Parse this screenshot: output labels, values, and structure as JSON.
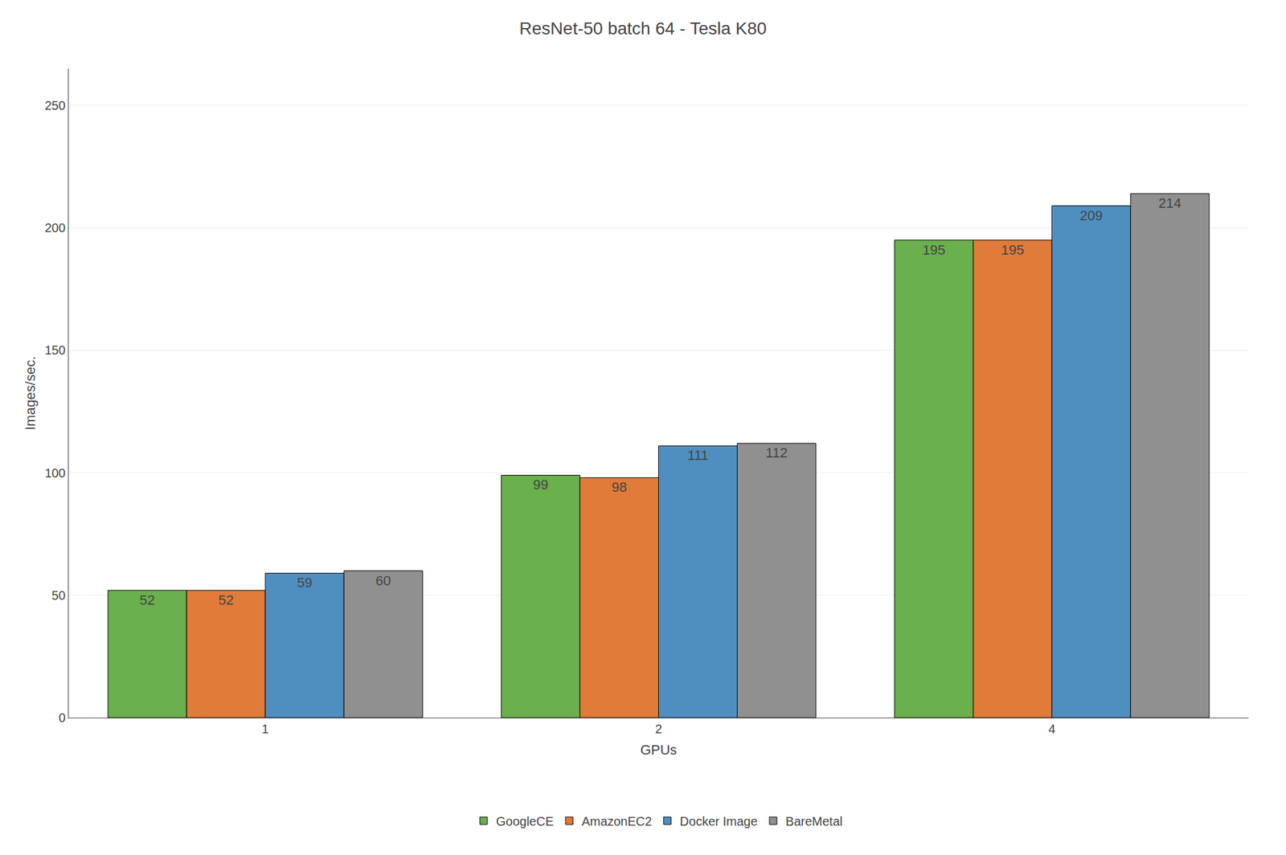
{
  "chart_data": {
    "type": "bar",
    "title": "ResNet-50 batch 64 - Tesla K80",
    "xlabel": "GPUs",
    "ylabel": "Images/sec.",
    "categories": [
      1,
      2,
      4
    ],
    "series": [
      {
        "name": "GoogleCE",
        "color": "#6ab04c",
        "values": [
          52,
          99,
          195
        ]
      },
      {
        "name": "AmazonEC2",
        "color": "#e07b39",
        "values": [
          52,
          98,
          195
        ]
      },
      {
        "name": "Docker Image",
        "color": "#4f8fc0",
        "values": [
          59,
          111,
          209
        ]
      },
      {
        "name": "BareMetal",
        "color": "#909090",
        "values": [
          60,
          112,
          214
        ]
      }
    ],
    "ylim": [
      0,
      265
    ],
    "yticks": [
      0,
      50,
      100,
      150,
      200,
      250
    ],
    "grid": true,
    "legend": "bottom",
    "data_labels": true
  }
}
